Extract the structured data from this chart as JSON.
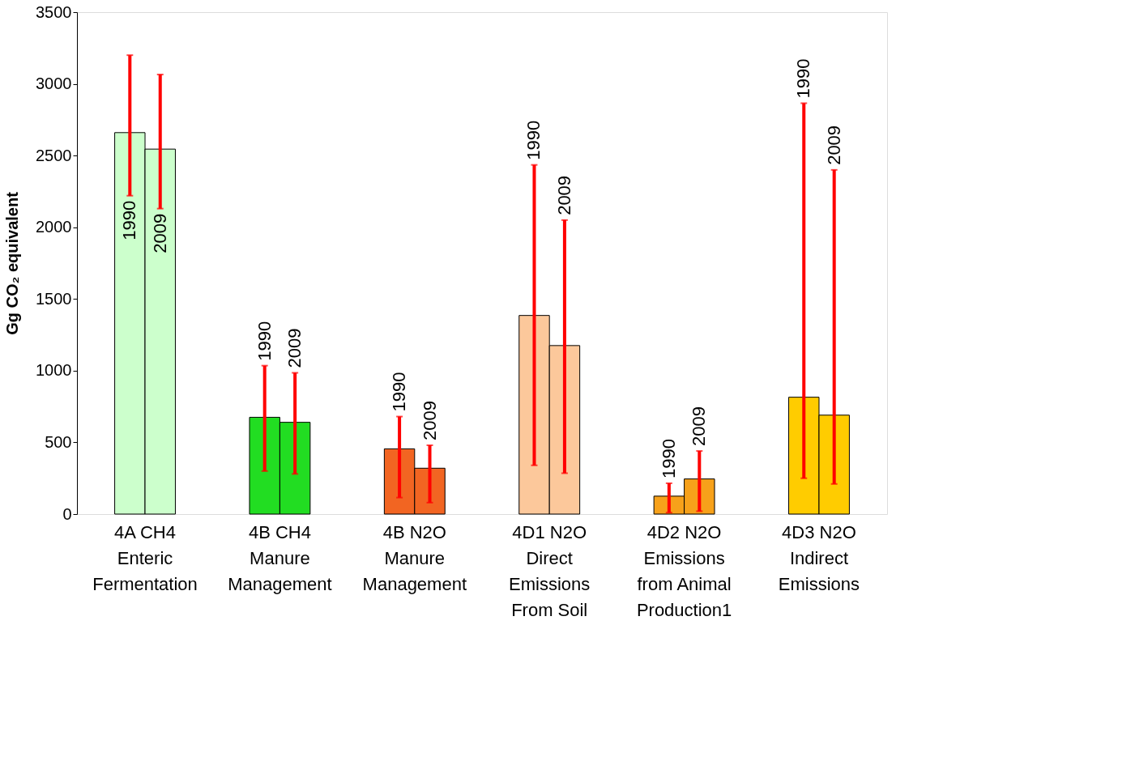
{
  "chart_data": {
    "type": "bar",
    "ylabel": "Gg CO₂ equivalent",
    "categories": [
      "4A   CH4\nEnteric\nFermentation",
      "4B   CH4\nManure\nManagement",
      "4B   N2O\nManure\nManagement",
      "4D1 N2O\nDirect\nEmissions\nFrom Soil",
      "4D2 N2O\nEmissions\nfrom Animal\nProduction1",
      "4D3 N2O\nIndirect\nEmissions"
    ],
    "series": [
      {
        "name": "1990",
        "colors": [
          "#ccffcc",
          "#22dd22",
          "#f26522",
          "#fcc89b",
          "#f7a11a",
          "#ffcc00"
        ],
        "values": [
          2660,
          675,
          455,
          1385,
          125,
          815
        ],
        "errors": [
          [
            2220,
            3200
          ],
          [
            300,
            1035
          ],
          [
            115,
            680
          ],
          [
            340,
            2435
          ],
          [
            10,
            215
          ],
          [
            250,
            2865
          ]
        ]
      },
      {
        "name": "2009",
        "colors": [
          "#ccffcc",
          "#22dd22",
          "#f26522",
          "#fcc89b",
          "#f7a11a",
          "#ffcc00"
        ],
        "values": [
          2545,
          640,
          320,
          1175,
          245,
          690
        ],
        "errors": [
          [
            2130,
            3065
          ],
          [
            280,
            985
          ],
          [
            80,
            480
          ],
          [
            285,
            2050
          ],
          [
            20,
            440
          ],
          [
            210,
            2400
          ]
        ]
      }
    ],
    "ylim": [
      0,
      3500
    ],
    "yticks": [
      0,
      500,
      1000,
      1500,
      2000,
      2500,
      3000,
      3500
    ],
    "grid": false
  }
}
